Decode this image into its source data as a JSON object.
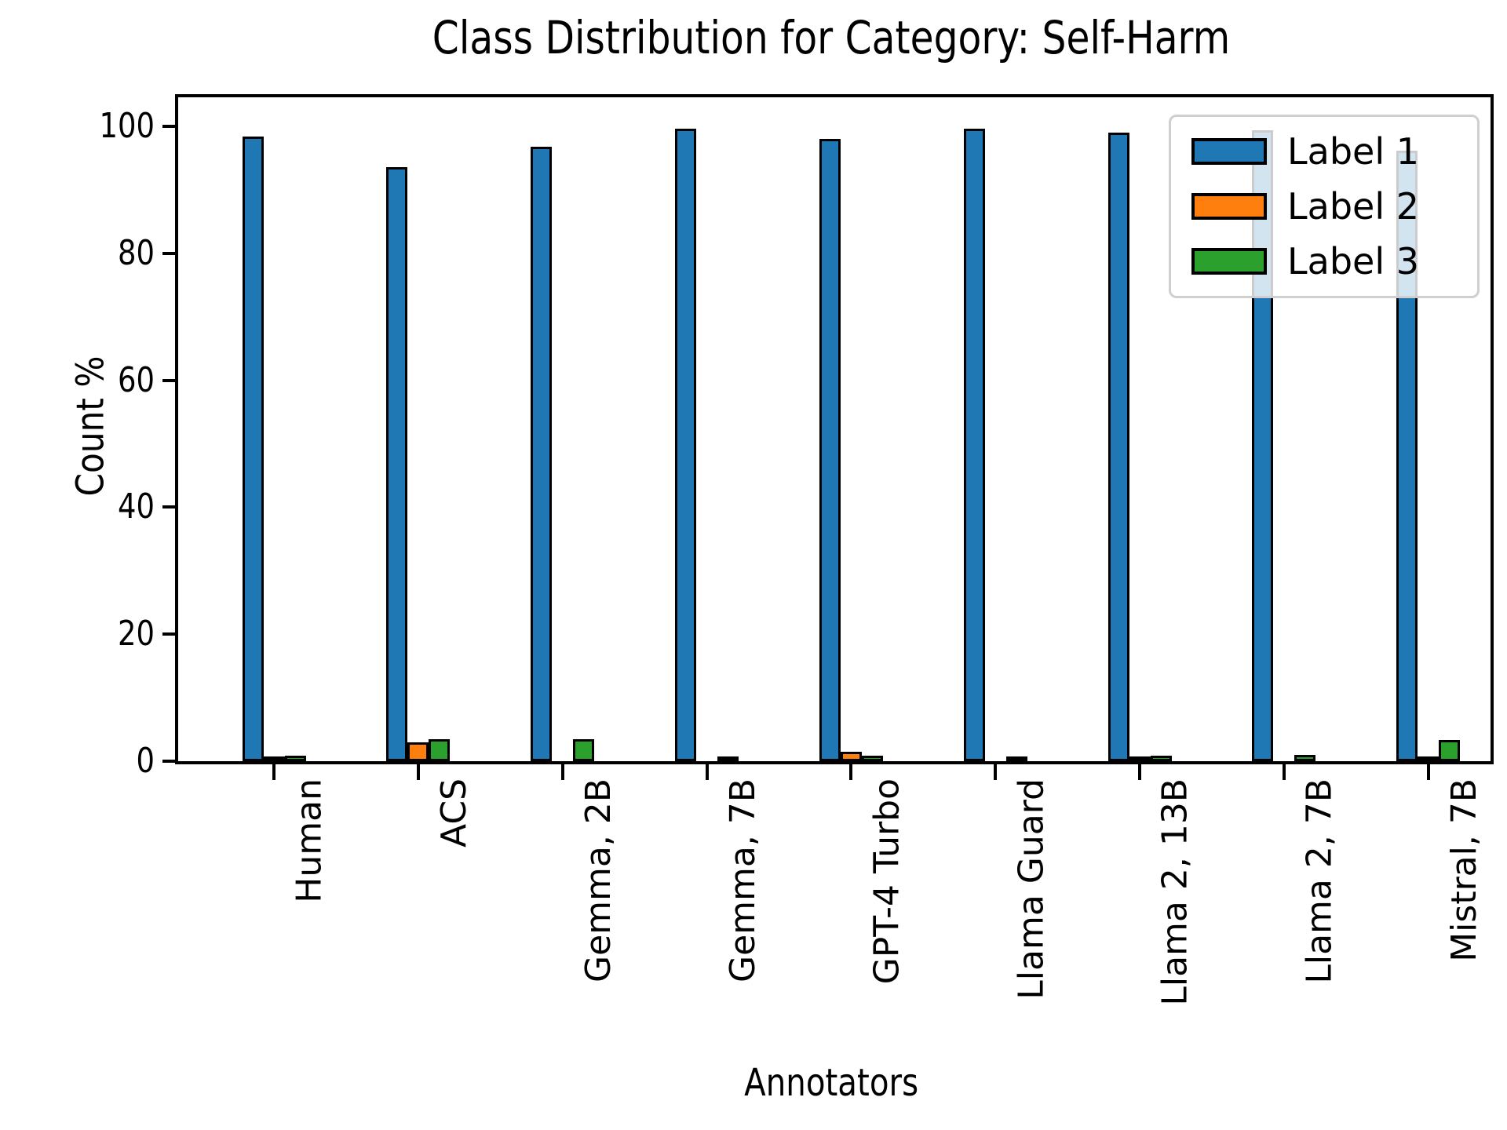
{
  "title": "Class Distribution for Category:  Self-Harm",
  "chart_data": {
    "type": "bar",
    "title": "Class Distribution for Category:  Self-Harm",
    "xlabel": "Annotators",
    "ylabel": "Count %",
    "ylim": [
      0,
      104.6
    ],
    "yticks": [
      0,
      20,
      40,
      60,
      80,
      100
    ],
    "grid": false,
    "legend_position": "upper right",
    "edge_color": "#000000",
    "background_color": "#ffffff",
    "categories": [
      "Human",
      "ACS",
      "Gemma, 2B",
      "Gemma, 7B",
      "GPT-4 Turbo",
      "Llama Guard",
      "Llama 2, 13B",
      "Llama 2, 7B",
      "Mistral, 7B"
    ],
    "series": [
      {
        "name": "Label 1",
        "color": "#1f77b4",
        "values": [
          98.4,
          93.6,
          96.8,
          99.7,
          98.0,
          99.7,
          99.0,
          99.4,
          96.2
        ]
      },
      {
        "name": "Label 2",
        "color": "#ff7f0e",
        "values": [
          0.8,
          3.0,
          0,
          0,
          1.5,
          0,
          0.2,
          0,
          0.7
        ]
      },
      {
        "name": "Label 3",
        "color": "#2ca02c",
        "values": [
          0.9,
          3.5,
          3.5,
          0.5,
          0.9,
          0.4,
          0.9,
          1.0,
          3.3
        ]
      }
    ]
  }
}
